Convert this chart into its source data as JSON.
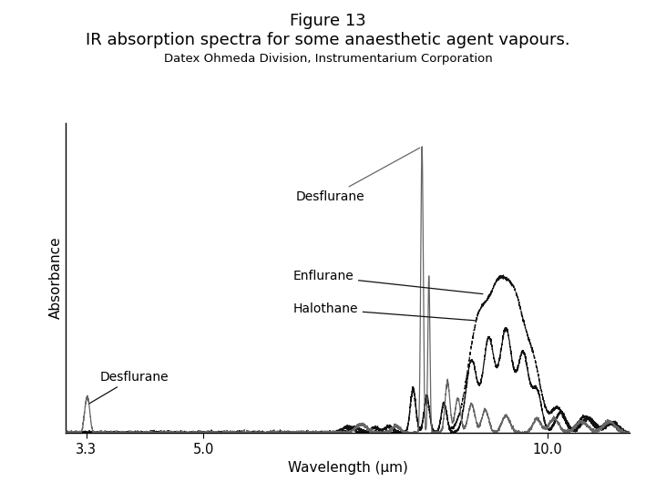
{
  "title_line1": "Figure 13",
  "title_line2": "IR absorption spectra for some anaesthetic agent vapours.",
  "subtitle": "Datex Ohmeda Division, Instrumentarium Corporation",
  "xlabel": "Wavelength (μm)",
  "ylabel": "Absorbance",
  "xlim": [
    3.0,
    11.2
  ],
  "ylim": [
    0,
    1.05
  ],
  "x_ticks": [
    3.3,
    5.0,
    10.0
  ],
  "x_tick_labels": [
    "3.3",
    "5.0",
    "10.0"
  ],
  "bg_color": "#ffffff",
  "title_fontsize": 14,
  "subtitle_fontsize": 10,
  "axis_label_fontsize": 11,
  "annotation_fontsize": 10
}
